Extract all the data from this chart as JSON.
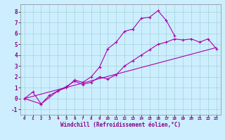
{
  "xlabel": "Windchill (Refroidissement éolien,°C)",
  "bg_color": "#cceeff",
  "line_color": "#aa00aa",
  "grid_color": "#99cccc",
  "xlim": [
    -0.5,
    23.5
  ],
  "ylim": [
    -1.5,
    8.7
  ],
  "xticks": [
    0,
    1,
    2,
    3,
    4,
    5,
    6,
    7,
    8,
    9,
    10,
    11,
    12,
    13,
    14,
    15,
    16,
    17,
    18,
    19,
    20,
    21,
    22,
    23
  ],
  "yticks": [
    -1,
    0,
    1,
    2,
    3,
    4,
    5,
    6,
    7,
    8
  ],
  "line1_x": [
    0,
    1,
    2,
    3,
    4,
    5,
    6,
    7,
    8,
    9,
    10,
    11,
    12,
    13,
    14,
    15,
    16,
    17,
    18
  ],
  "line1_y": [
    0.0,
    0.6,
    -0.5,
    0.3,
    0.7,
    1.0,
    1.7,
    1.5,
    2.0,
    2.9,
    4.6,
    5.2,
    6.2,
    6.4,
    7.4,
    7.5,
    8.1,
    7.2,
    5.8
  ],
  "line2_x": [
    0,
    2,
    4,
    5,
    6,
    7,
    8,
    9,
    10,
    11,
    12,
    13,
    14,
    15,
    16,
    17,
    18,
    19,
    20,
    21,
    22,
    23
  ],
  "line2_y": [
    0.0,
    -0.5,
    0.7,
    1.1,
    1.6,
    1.3,
    1.5,
    2.0,
    1.8,
    2.2,
    3.0,
    3.5,
    4.0,
    4.5,
    5.0,
    5.2,
    5.5,
    5.4,
    5.5,
    5.2,
    5.5,
    4.6
  ],
  "line3_x": [
    0,
    23
  ],
  "line3_y": [
    0.0,
    4.7
  ],
  "xlabel_fontsize": 5.5,
  "tick_fontsize_x": 4.2,
  "tick_fontsize_y": 5.5
}
